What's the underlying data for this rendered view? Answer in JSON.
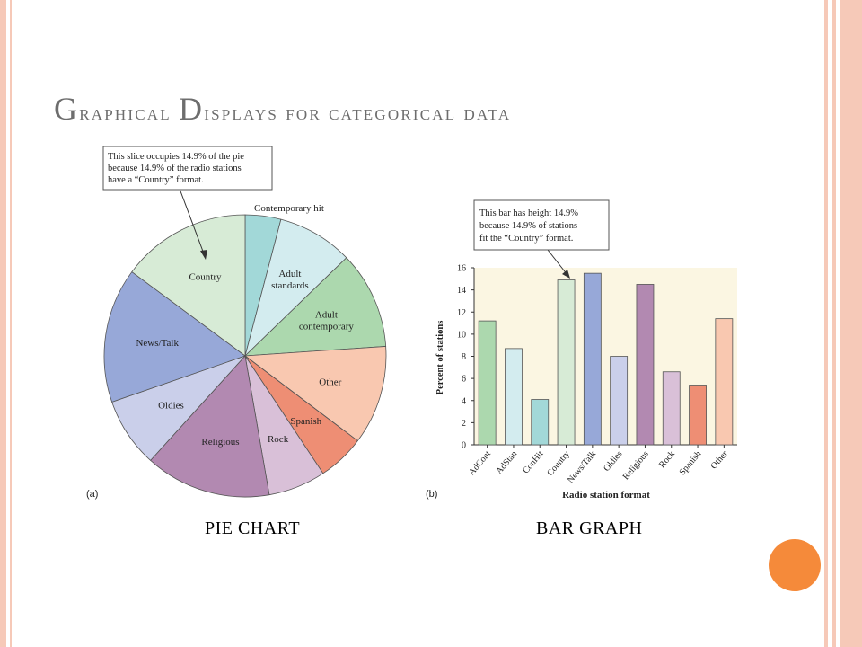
{
  "slide": {
    "title_parts": [
      {
        "text": "G",
        "big": true
      },
      {
        "text": "raphical ",
        "big": false
      },
      {
        "text": "D",
        "big": true
      },
      {
        "text": "isplays for categorical data",
        "big": false
      }
    ],
    "caption_left": "PIE CHART",
    "caption_right": "BAR GRAPH",
    "colors": {
      "frame": "#f6c9b8",
      "accent": "#f58a3a",
      "title": "#6d6d6d"
    }
  },
  "chart_data": [
    {
      "type": "pie",
      "panel_label": "(a)",
      "callout": [
        "This slice occupies 14.9% of the pie",
        "because 14.9% of the radio stations",
        "have a “Country” format."
      ],
      "slices": [
        {
          "label": "Contemporary hit",
          "lines": [
            "Contemporary hit"
          ],
          "value": 4.1,
          "color": "#a2d8d8"
        },
        {
          "label": "Adult standards",
          "lines": [
            "Adult",
            "standards"
          ],
          "value": 8.7,
          "color": "#d3ecef"
        },
        {
          "label": "Adult contemporary",
          "lines": [
            "Adult",
            "contemporary"
          ],
          "value": 11.2,
          "color": "#acd8ae"
        },
        {
          "label": "Other",
          "lines": [
            "Other"
          ],
          "value": 11.4,
          "color": "#f9c8b0"
        },
        {
          "label": "Spanish",
          "lines": [
            "Spanish"
          ],
          "value": 5.4,
          "color": "#ee8e74"
        },
        {
          "label": "Rock",
          "lines": [
            "Rock"
          ],
          "value": 6.6,
          "color": "#d9c0d8"
        },
        {
          "label": "Religious",
          "lines": [
            "Religious"
          ],
          "value": 14.5,
          "color": "#b289b1"
        },
        {
          "label": "Oldies",
          "lines": [
            "Oldies"
          ],
          "value": 8.0,
          "color": "#cacfea"
        },
        {
          "label": "News/Talk",
          "lines": [
            "News/Talk"
          ],
          "value": 15.5,
          "color": "#97a8d8"
        },
        {
          "label": "Country",
          "lines": [
            "Country"
          ],
          "value": 14.9,
          "color": "#d7ebd6"
        }
      ]
    },
    {
      "type": "bar",
      "panel_label": "(b)",
      "callout": [
        "This bar has height 14.9%",
        "because 14.9% of stations",
        "fit the “Country” format."
      ],
      "xlabel": "Radio station format",
      "ylabel": "Percent of stations",
      "ylim": [
        0,
        16
      ],
      "yticks": [
        0,
        2,
        4,
        6,
        8,
        10,
        12,
        14,
        16
      ],
      "background": "#fbf6e2",
      "categories": [
        "AdCont",
        "AdStan",
        "ConHit",
        "Country",
        "News/Talk",
        "Oldies",
        "Religious",
        "Rock",
        "Spanish",
        "Other"
      ],
      "values": [
        11.2,
        8.7,
        4.1,
        14.9,
        15.5,
        8.0,
        14.5,
        6.6,
        5.4,
        11.4
      ],
      "colors": [
        "#acd8ae",
        "#d3ecef",
        "#a2d8d8",
        "#d7ebd6",
        "#97a8d8",
        "#cacfea",
        "#b289b1",
        "#d9c0d8",
        "#ee8e74",
        "#f9c8b0"
      ]
    }
  ]
}
